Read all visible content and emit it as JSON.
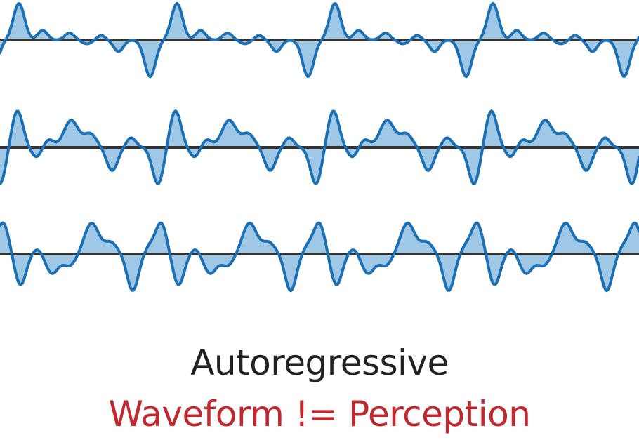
{
  "colors": {
    "wave_stroke": "#1a6fb5",
    "wave_fill": "#9fc7e6",
    "baseline": "#333333",
    "title_text": "#222222",
    "subtitle_text": "#c1272d"
  },
  "caption": {
    "title": "Autoregressive",
    "subtitle": "Waveform != Perception"
  },
  "waveforms": [
    {
      "name": "waveform-top",
      "period": 225,
      "phase": 0,
      "pulses": [
        {
          "c": 0.12,
          "a": 0.95,
          "w": 0.035
        },
        {
          "c": 0.27,
          "a": 0.25,
          "w": 0.03
        },
        {
          "c": 0.44,
          "a": 0.18,
          "w": 0.03
        },
        {
          "c": 0.55,
          "a": -0.1,
          "w": 0.03
        },
        {
          "c": 0.64,
          "a": 0.12,
          "w": 0.025
        },
        {
          "c": 0.75,
          "a": -0.3,
          "w": 0.03
        },
        {
          "c": 0.95,
          "a": -0.95,
          "w": 0.035
        }
      ]
    },
    {
      "name": "waveform-middle",
      "period": 225,
      "phase": 0.05,
      "pulses": [
        {
          "c": 0.05,
          "a": -0.95,
          "w": 0.035
        },
        {
          "c": 0.16,
          "a": 0.95,
          "w": 0.035
        },
        {
          "c": 0.28,
          "a": -0.25,
          "w": 0.03
        },
        {
          "c": 0.36,
          "a": 0.2,
          "w": 0.03
        },
        {
          "c": 0.5,
          "a": 0.7,
          "w": 0.045
        },
        {
          "c": 0.62,
          "a": 0.35,
          "w": 0.04
        },
        {
          "c": 0.76,
          "a": -0.6,
          "w": 0.035
        },
        {
          "c": 0.88,
          "a": 0.25,
          "w": 0.03
        }
      ]
    },
    {
      "name": "waveform-bottom",
      "period": 225,
      "phase": 0,
      "pulses": [
        {
          "c": 0.02,
          "a": 0.8,
          "w": 0.035
        },
        {
          "c": 0.13,
          "a": -0.8,
          "w": 0.035
        },
        {
          "c": 0.24,
          "a": 0.15,
          "w": 0.03
        },
        {
          "c": 0.33,
          "a": -0.5,
          "w": 0.04
        },
        {
          "c": 0.44,
          "a": -0.3,
          "w": 0.04
        },
        {
          "c": 0.58,
          "a": 0.8,
          "w": 0.045
        },
        {
          "c": 0.7,
          "a": 0.3,
          "w": 0.04
        },
        {
          "c": 0.84,
          "a": -0.95,
          "w": 0.035
        },
        {
          "c": 0.95,
          "a": 0.2,
          "w": 0.03
        }
      ]
    }
  ]
}
